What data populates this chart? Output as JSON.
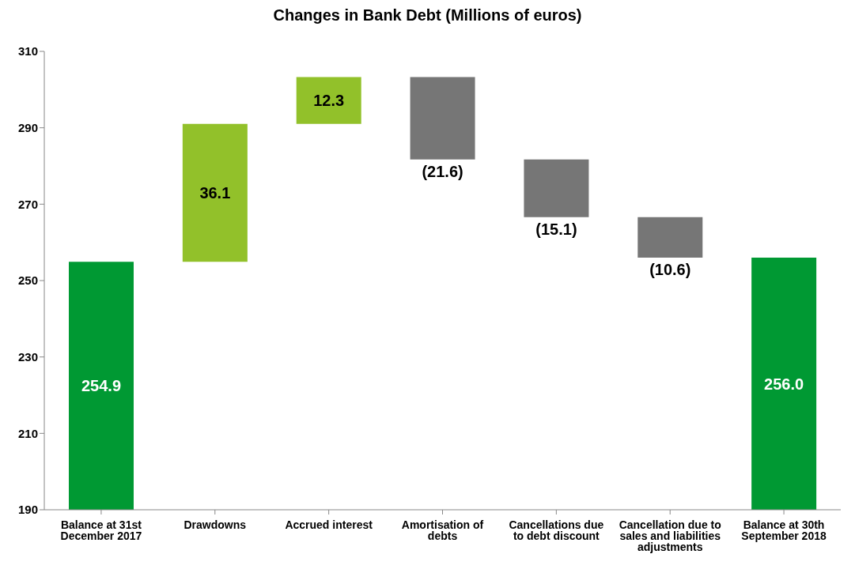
{
  "chart_data": {
    "type": "bar",
    "title": "Changes in Bank Debt (Millions of euros)",
    "categories": [
      "Balance at 31st December 2017",
      "Drawdowns",
      "Accrued interest",
      "Amortisation of debts",
      "Cancellations due to debt discount",
      "Cancellation due to sales and liabilities adjustments",
      "Balance at 30th September 2018"
    ],
    "values": [
      254.9,
      36.1,
      12.3,
      -21.6,
      -15.1,
      -10.6,
      256.0
    ],
    "base": [
      null,
      254.9,
      291.0,
      303.3,
      281.7,
      266.6,
      null
    ],
    "colors": [
      "#009933",
      "#92c12a",
      "#92c12a",
      "#767676",
      "#767676",
      "#767676",
      "#009933"
    ],
    "value_labels": [
      "254.9",
      "36.1",
      "12.3",
      "(21.6)",
      "(15.1)",
      "(10.6)",
      "256.0"
    ],
    "ylim": [
      190,
      310
    ],
    "yticks": [
      190,
      210,
      230,
      250,
      270,
      290,
      310
    ],
    "grid": false
  }
}
